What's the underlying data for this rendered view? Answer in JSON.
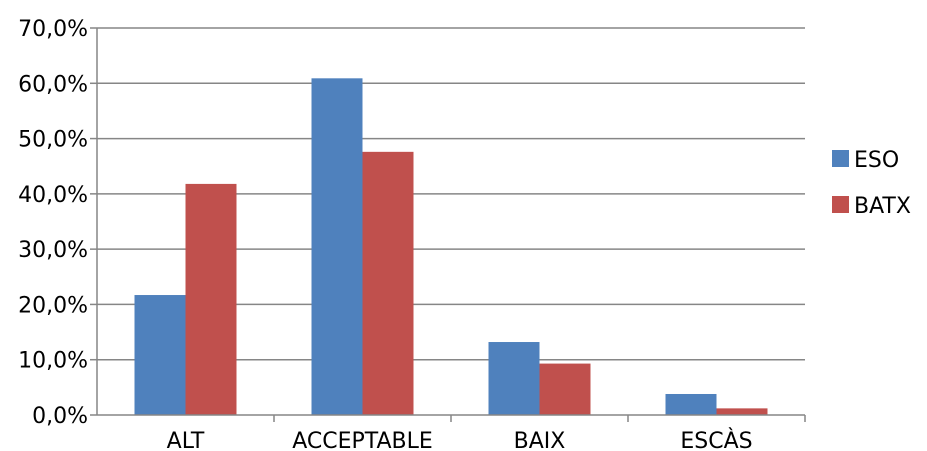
{
  "chart_data": {
    "type": "bar",
    "categories": [
      "ALT",
      "ACCEPTABLE",
      "BAIX",
      "ESCÀS"
    ],
    "series": [
      {
        "name": "ESO",
        "values": [
          21.7,
          60.9,
          13.2,
          3.8
        ],
        "color": "#4f81bd"
      },
      {
        "name": "BATX",
        "values": [
          41.8,
          47.6,
          9.3,
          1.2
        ],
        "color": "#c0504d"
      }
    ],
    "yticks": [
      "0,0%",
      "10,0%",
      "20,0%",
      "30,0%",
      "40,0%",
      "50,0%",
      "60,0%",
      "70,0%"
    ],
    "ylim": [
      0,
      70
    ],
    "ystep": 10,
    "grid": true,
    "legend_position": "right",
    "gridline_color": "#868686"
  }
}
